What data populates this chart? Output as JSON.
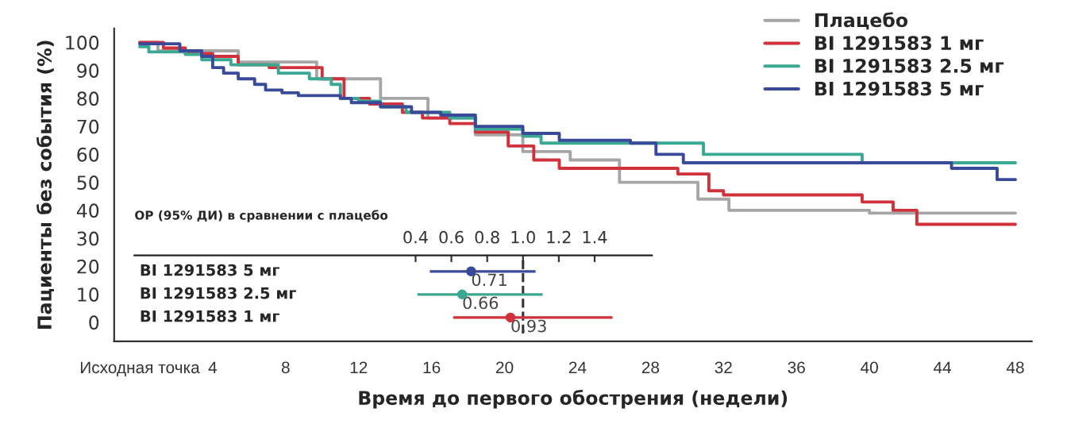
{
  "chart_data": [
    {
      "type": "step",
      "xlabel": "Время до первого обострения (недели)",
      "ylabel": "Пациенты без события (%)",
      "xlim": [
        -1.4,
        48.9
      ],
      "ylim": [
        -6.8,
        105
      ],
      "xticks": [
        {
          "value": 0,
          "label": "Исходная точка"
        },
        4,
        8,
        12,
        16,
        20,
        24,
        28,
        32,
        36,
        40,
        44,
        48
      ],
      "yticks": [
        0,
        10,
        20,
        30,
        40,
        50,
        60,
        70,
        80,
        90,
        100
      ],
      "grid": false,
      "legend": "top right",
      "line_style": "solid",
      "marker": "none",
      "series": [
        {
          "name": "Плацебо",
          "color": "#a6a6a6",
          "x": [
            0,
            1,
            5.4,
            9.7,
            13.2,
            15.8,
            18.4,
            21,
            23.6,
            26.3,
            30.6,
            32.3,
            40,
            48
          ],
          "values": [
            100,
            97,
            93,
            87,
            80,
            73,
            67,
            61,
            58,
            50,
            44,
            40,
            39,
            39
          ]
        },
        {
          "name": "BI 1291583 1 мг",
          "color": "#d0313a",
          "x": [
            0,
            1.3,
            2.5,
            4,
            5.4,
            7.1,
            10,
            11.2,
            12.6,
            14.4,
            15.5,
            17,
            18.4,
            20.2,
            21.6,
            23,
            29.5,
            31.2,
            32,
            39.6,
            41.3,
            42.6,
            48
          ],
          "values": [
            100,
            98,
            96,
            95,
            92,
            91,
            87,
            80,
            78,
            75,
            73,
            71,
            68,
            63,
            58,
            55,
            53,
            47,
            45.5,
            43,
            40,
            35,
            35
          ]
        },
        {
          "name": "BI 1291583 2.5 мг",
          "color": "#3aa893",
          "x": [
            0,
            0.5,
            2.5,
            3.4,
            5,
            7.6,
            9.3,
            10.5,
            11,
            12,
            13.2,
            14.6,
            17,
            18.4,
            21,
            22,
            30.9,
            39.6,
            48
          ],
          "values": [
            98.5,
            96.6,
            95.7,
            93.8,
            92,
            89,
            87,
            85,
            80,
            79,
            77,
            75,
            73,
            69,
            66.5,
            64,
            60,
            57,
            57
          ]
        },
        {
          "name": "BI 1291583 5 мг",
          "color": "#3a4a9a",
          "x": [
            0,
            2.2,
            3.4,
            4,
            4.6,
            5.4,
            6.3,
            6.9,
            7.8,
            8.7,
            11,
            11.6,
            13.2,
            14.9,
            16.5,
            18.4,
            21,
            23,
            26.9,
            28.3,
            29.8,
            44.5,
            47,
            48
          ],
          "values": [
            99.5,
            97,
            95,
            91,
            89,
            87,
            85,
            83,
            82,
            81,
            80,
            78.5,
            77,
            75,
            74,
            70,
            67.5,
            65,
            64,
            60,
            57,
            55,
            51,
            51
          ]
        }
      ]
    },
    {
      "type": "scatter",
      "orientation": "horizontal",
      "title": "ОР (95% ДИ) в сравнении с плацебо",
      "categories": [
        "BI 1291583 5 мг",
        "BI 1291583 2.5 мг",
        "BI 1291583 1 мг"
      ],
      "values": [
        0.71,
        0.66,
        0.93
      ],
      "errors": [
        [
          0.48,
          1.07
        ],
        [
          0.41,
          1.11
        ],
        [
          0.61,
          1.5
        ]
      ],
      "colors": [
        "#3a4a9a",
        "#3aa893",
        "#d0313a"
      ],
      "xlim": [
        -1.17,
        1.72
      ],
      "xticks": [
        0.4,
        0.6,
        0.8,
        {
          "value": 1.0,
          "label": "1.0"
        },
        1.2,
        1.4
      ],
      "ref_lines": [
        {
          "axis": "x",
          "value": 1.0,
          "line_style": "dashed",
          "color": "#333333"
        }
      ],
      "data_labels": true,
      "tick_labels": "x",
      "marker": "circle"
    }
  ]
}
